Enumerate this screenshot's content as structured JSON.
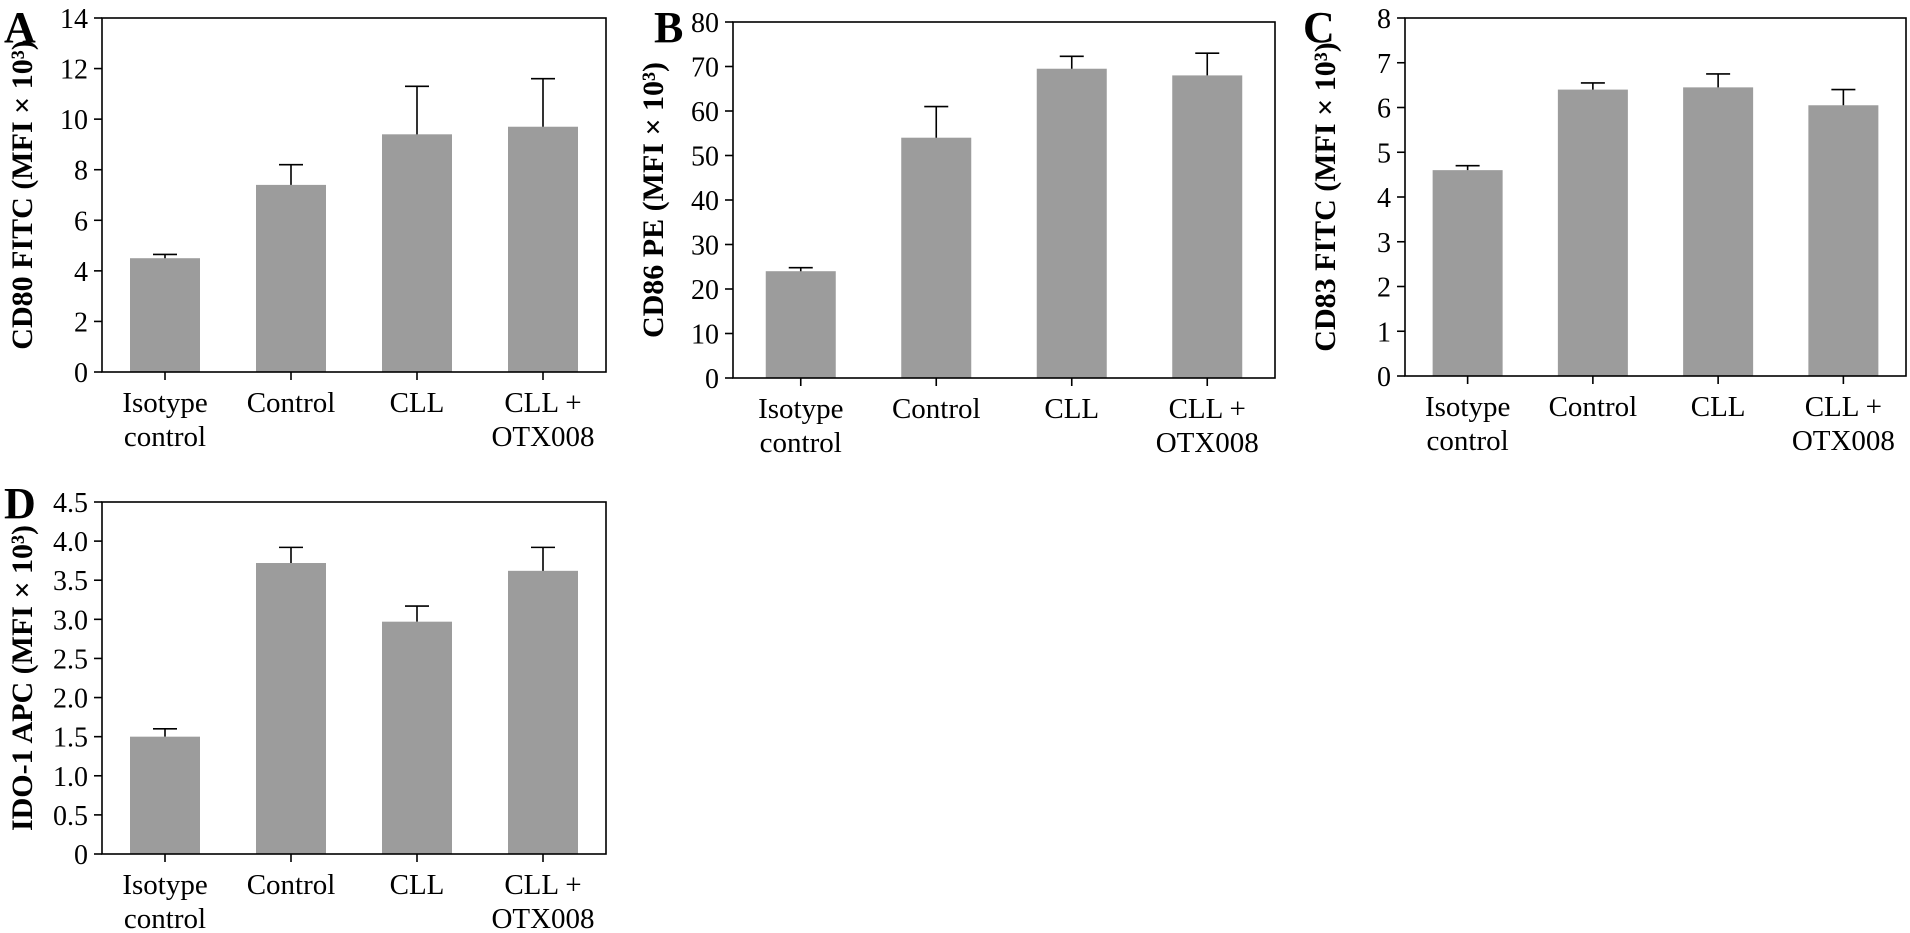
{
  "colors": {
    "bar": "#9c9c9c",
    "axis": "#000000",
    "background": "#ffffff"
  },
  "chart_data": [
    {
      "panel": "A",
      "type": "bar",
      "ylabel": "CD80 FITC (MFI × 10³)",
      "categories": [
        [
          "Isotype",
          "control"
        ],
        [
          "Control"
        ],
        [
          "CLL"
        ],
        [
          "CLL +",
          "OTX008"
        ]
      ],
      "values": [
        4.5,
        7.4,
        9.4,
        9.7
      ],
      "errors": [
        0.15,
        0.8,
        1.9,
        1.9
      ],
      "ylim": [
        0,
        14
      ],
      "ticks": [
        0,
        2,
        4,
        6,
        8,
        10,
        12,
        14
      ],
      "tick_labels": [
        "0",
        "2",
        "4",
        "6",
        "8",
        "10",
        "12",
        "14"
      ],
      "grid": false
    },
    {
      "panel": "B",
      "type": "bar",
      "ylabel": "CD86 PE (MFI × 10³)",
      "categories": [
        [
          "Isotype",
          "control"
        ],
        [
          "Control"
        ],
        [
          "CLL"
        ],
        [
          "CLL +",
          "OTX008"
        ]
      ],
      "values": [
        24,
        54,
        69.5,
        68
      ],
      "errors": [
        0.8,
        7,
        2.8,
        5
      ],
      "ylim": [
        0,
        80
      ],
      "ticks": [
        0,
        10,
        20,
        30,
        40,
        50,
        60,
        70,
        80
      ],
      "tick_labels": [
        "0",
        "10",
        "20",
        "30",
        "40",
        "50",
        "60",
        "70",
        "80"
      ],
      "grid": false
    },
    {
      "panel": "C",
      "type": "bar",
      "ylabel": "CD83 FITC (MFI × 10³)",
      "categories": [
        [
          "Isotype",
          "control"
        ],
        [
          "Control"
        ],
        [
          "CLL"
        ],
        [
          "CLL +",
          "OTX008"
        ]
      ],
      "values": [
        4.6,
        6.4,
        6.45,
        6.05
      ],
      "errors": [
        0.1,
        0.15,
        0.3,
        0.35
      ],
      "ylim": [
        0,
        8
      ],
      "ticks": [
        0,
        1,
        2,
        3,
        4,
        5,
        6,
        7,
        8
      ],
      "tick_labels": [
        "0",
        "1",
        "2",
        "3",
        "4",
        "5",
        "6",
        "7",
        "8"
      ],
      "grid": false
    },
    {
      "panel": "D",
      "type": "bar",
      "ylabel": "IDO-1 APC (MFI × 10³)",
      "categories": [
        [
          "Isotype",
          "control"
        ],
        [
          "Control"
        ],
        [
          "CLL"
        ],
        [
          "CLL +",
          "OTX008"
        ]
      ],
      "values": [
        1.5,
        3.72,
        2.97,
        3.62
      ],
      "errors": [
        0.1,
        0.2,
        0.2,
        0.3
      ],
      "ylim": [
        0,
        4.5
      ],
      "ticks": [
        0,
        0.5,
        1.0,
        1.5,
        2.0,
        2.5,
        3.0,
        3.5,
        4.0,
        4.5
      ],
      "tick_labels": [
        "0",
        "0.5",
        "1.0",
        "1.5",
        "2.0",
        "2.5",
        "3.0",
        "3.5",
        "4.0",
        "4.5"
      ],
      "grid": false
    }
  ]
}
